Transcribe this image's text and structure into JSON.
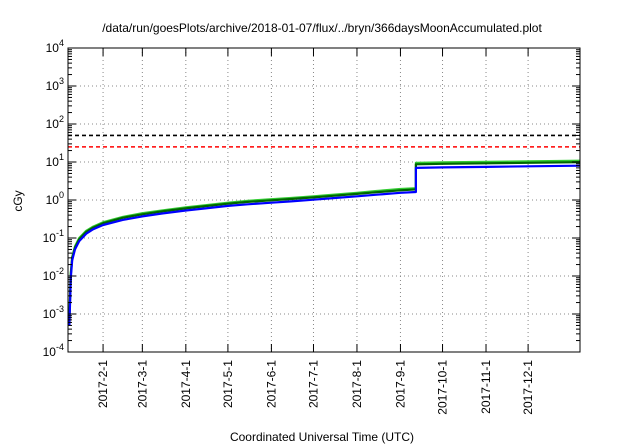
{
  "chart_data": {
    "type": "line",
    "title": "/data/run/goesPlots/archive/2018-01-07/flux/../bryn/366daysMoonAccumulated.plot",
    "xlabel": "Coordinated Universal Time (UTC)",
    "ylabel": "cGy",
    "yscale": "log",
    "ylim": [
      0.0001,
      10000
    ],
    "xlim": [
      "2017-01-07",
      "2018-01-07"
    ],
    "grid": true,
    "x_tick_labels": [
      "2017-2-1",
      "2017-3-1",
      "2017-4-1",
      "2017-5-1",
      "2017-6-1",
      "2017-7-1",
      "2017-8-1",
      "2017-9-1",
      "2017-10-1",
      "2017-11-1",
      "2017-12-1"
    ],
    "x_ticks": [
      "2017-02-01",
      "2017-03-01",
      "2017-04-01",
      "2017-05-01",
      "2017-06-01",
      "2017-07-01",
      "2017-08-01",
      "2017-09-01",
      "2017-10-01",
      "2017-11-01",
      "2017-12-01"
    ],
    "y_ticks": [
      {
        "value": 0.0001,
        "base": "10",
        "exp": "-4"
      },
      {
        "value": 0.001,
        "base": "10",
        "exp": "-3"
      },
      {
        "value": 0.01,
        "base": "10",
        "exp": "-2"
      },
      {
        "value": 0.1,
        "base": "10",
        "exp": "-1"
      },
      {
        "value": 1,
        "base": "10",
        "exp": "0"
      },
      {
        "value": 10,
        "base": "10",
        "exp": "1"
      },
      {
        "value": 100,
        "base": "10",
        "exp": "2"
      },
      {
        "value": 1000,
        "base": "10",
        "exp": "3"
      },
      {
        "value": 10000,
        "base": "10",
        "exp": "4"
      }
    ],
    "thresholds": [
      {
        "value": 50,
        "color": "#000000",
        "style": "dashed"
      },
      {
        "value": 25,
        "color": "#ff0000",
        "style": "dashed"
      }
    ],
    "series": [
      {
        "color": "#33cc33",
        "points": [
          [
            "2017-01-08",
            0.0008
          ],
          [
            "2017-01-09",
            0.012
          ],
          [
            "2017-01-10",
            0.032
          ],
          [
            "2017-01-12",
            0.06
          ],
          [
            "2017-01-15",
            0.1
          ],
          [
            "2017-01-20",
            0.155
          ],
          [
            "2017-01-25",
            0.2
          ],
          [
            "2017-02-01",
            0.26
          ],
          [
            "2017-02-15",
            0.36
          ],
          [
            "2017-03-01",
            0.45
          ],
          [
            "2017-03-15",
            0.53
          ],
          [
            "2017-04-01",
            0.64
          ],
          [
            "2017-04-15",
            0.73
          ],
          [
            "2017-05-01",
            0.85
          ],
          [
            "2017-05-15",
            0.95
          ],
          [
            "2017-06-01",
            1.05
          ],
          [
            "2017-06-15",
            1.13
          ],
          [
            "2017-07-01",
            1.25
          ],
          [
            "2017-07-15",
            1.38
          ],
          [
            "2017-08-01",
            1.55
          ],
          [
            "2017-08-15",
            1.72
          ],
          [
            "2017-09-01",
            1.95
          ],
          [
            "2017-09-12",
            2.05
          ],
          [
            "2017-09-12",
            9.5
          ],
          [
            "2017-10-01",
            9.8
          ],
          [
            "2017-11-01",
            10.1
          ],
          [
            "2017-12-01",
            10.4
          ],
          [
            "2018-01-07",
            10.8
          ]
        ]
      },
      {
        "color": "#006600",
        "points": [
          [
            "2017-01-08",
            0.0007
          ],
          [
            "2017-01-09",
            0.011
          ],
          [
            "2017-01-10",
            0.03
          ],
          [
            "2017-01-12",
            0.056
          ],
          [
            "2017-01-15",
            0.093
          ],
          [
            "2017-01-20",
            0.145
          ],
          [
            "2017-01-25",
            0.188
          ],
          [
            "2017-02-01",
            0.245
          ],
          [
            "2017-02-15",
            0.34
          ],
          [
            "2017-03-01",
            0.42
          ],
          [
            "2017-03-15",
            0.5
          ],
          [
            "2017-04-01",
            0.6
          ],
          [
            "2017-04-15",
            0.69
          ],
          [
            "2017-05-01",
            0.8
          ],
          [
            "2017-05-15",
            0.89
          ],
          [
            "2017-06-01",
            0.98
          ],
          [
            "2017-06-15",
            1.06
          ],
          [
            "2017-07-01",
            1.17
          ],
          [
            "2017-07-15",
            1.29
          ],
          [
            "2017-08-01",
            1.45
          ],
          [
            "2017-08-15",
            1.6
          ],
          [
            "2017-09-01",
            1.8
          ],
          [
            "2017-09-12",
            1.9
          ],
          [
            "2017-09-12",
            8.7
          ],
          [
            "2017-10-01",
            8.95
          ],
          [
            "2017-11-01",
            9.25
          ],
          [
            "2017-12-01",
            9.55
          ],
          [
            "2018-01-07",
            9.9
          ]
        ]
      },
      {
        "color": "#0000ff",
        "points": [
          [
            "2017-01-08",
            0.0005
          ],
          [
            "2017-01-09",
            0.009
          ],
          [
            "2017-01-10",
            0.026
          ],
          [
            "2017-01-12",
            0.05
          ],
          [
            "2017-01-15",
            0.083
          ],
          [
            "2017-01-20",
            0.13
          ],
          [
            "2017-01-25",
            0.17
          ],
          [
            "2017-02-01",
            0.22
          ],
          [
            "2017-02-15",
            0.3
          ],
          [
            "2017-03-01",
            0.37
          ],
          [
            "2017-03-15",
            0.44
          ],
          [
            "2017-04-01",
            0.53
          ],
          [
            "2017-04-15",
            0.6
          ],
          [
            "2017-05-01",
            0.7
          ],
          [
            "2017-05-15",
            0.77
          ],
          [
            "2017-06-01",
            0.85
          ],
          [
            "2017-06-15",
            0.92
          ],
          [
            "2017-07-01",
            1.02
          ],
          [
            "2017-07-15",
            1.12
          ],
          [
            "2017-08-01",
            1.25
          ],
          [
            "2017-08-15",
            1.38
          ],
          [
            "2017-09-01",
            1.55
          ],
          [
            "2017-09-12",
            1.62
          ],
          [
            "2017-09-12",
            7.0
          ],
          [
            "2017-10-01",
            7.2
          ],
          [
            "2017-11-01",
            7.45
          ],
          [
            "2017-12-01",
            7.7
          ],
          [
            "2018-01-07",
            8.0
          ]
        ]
      }
    ]
  }
}
